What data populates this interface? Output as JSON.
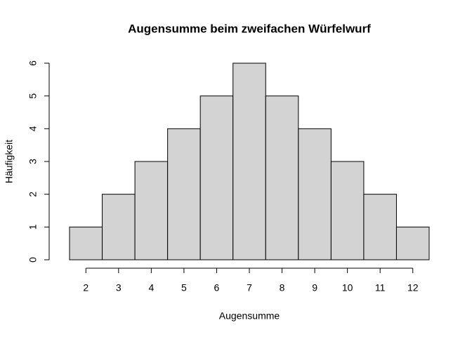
{
  "chart_data": {
    "type": "histogram",
    "title": "Augensumme beim zweifachen Würfelwurf",
    "x_label": "Augensumme",
    "y_label": "Häufigkeit",
    "bins": [
      1.5,
      2.5,
      3.5,
      4.5,
      5.5,
      6.5,
      7.5,
      8.5,
      9.5,
      10.5,
      11.5,
      12.5
    ],
    "values": [
      1,
      2,
      3,
      4,
      5,
      6,
      5,
      4,
      3,
      2,
      1
    ],
    "color": "#d3d3d3",
    "edgecolor": "#000000",
    "xlim": [
      1.5,
      12.5
    ],
    "xticks": [
      2,
      3,
      4,
      5,
      6,
      7,
      8,
      9,
      10,
      11,
      12
    ],
    "ylim": [
      0,
      6
    ],
    "yticks": [
      0,
      1,
      2,
      3,
      4,
      5,
      6
    ]
  }
}
